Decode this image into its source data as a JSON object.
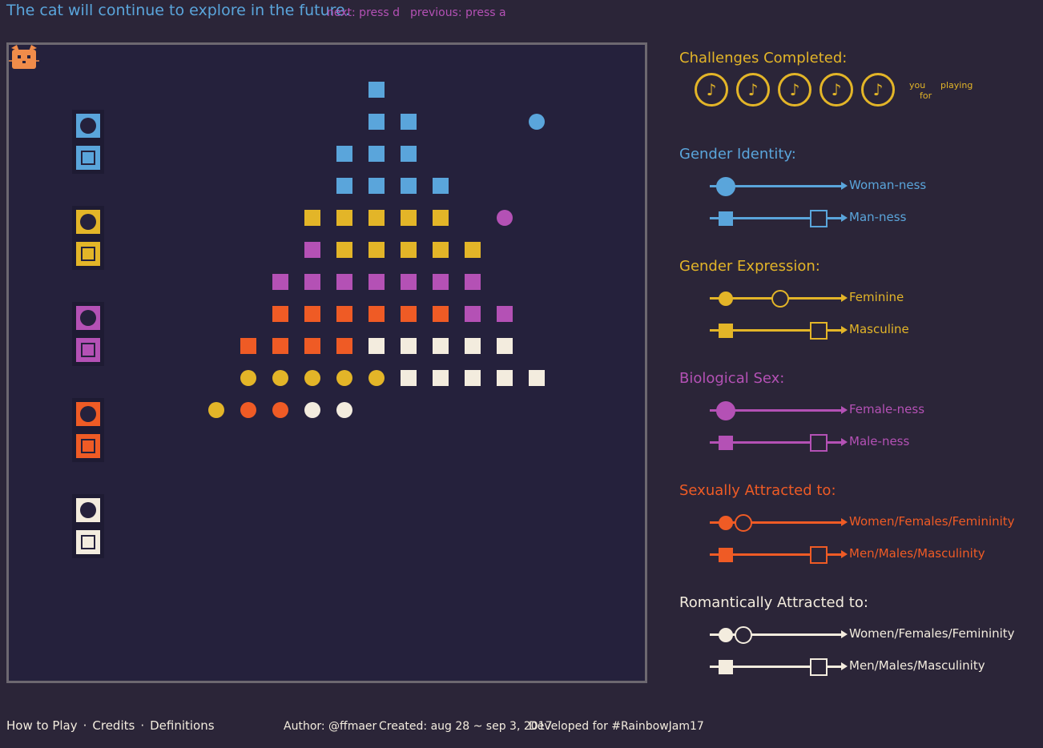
{
  "header": {
    "message": "The cat will continue to explore in the future.",
    "next_hint": "next: press d",
    "previous_hint": "previous: press a"
  },
  "colors": {
    "background": "#2b2538",
    "board": "#25213c",
    "blue": "#5aa5db",
    "yellow": "#e3b528",
    "purple": "#b451b5",
    "orange": "#ef5b25",
    "cream": "#f3ecde",
    "cat": "#f08c4a"
  },
  "board": {
    "cat_icon": "cat-icon",
    "key_tiles": [
      {
        "color": "blue",
        "mark": "circle"
      },
      {
        "color": "blue",
        "mark": "square"
      },
      {
        "color": "yellow",
        "mark": "circle"
      },
      {
        "color": "yellow",
        "mark": "square"
      },
      {
        "color": "purple",
        "mark": "circle"
      },
      {
        "color": "purple",
        "mark": "square"
      },
      {
        "color": "orange",
        "mark": "circle"
      },
      {
        "color": "orange",
        "mark": "square"
      },
      {
        "color": "cream",
        "mark": "circle"
      },
      {
        "color": "cream",
        "mark": "square"
      }
    ],
    "points": [
      {
        "col": 11,
        "row": 1,
        "shape": "square",
        "color": "blue"
      },
      {
        "col": 11,
        "row": 2,
        "shape": "square",
        "color": "blue"
      },
      {
        "col": 12,
        "row": 2,
        "shape": "square",
        "color": "blue"
      },
      {
        "col": 16,
        "row": 2,
        "shape": "circle",
        "color": "blue"
      },
      {
        "col": 10,
        "row": 3,
        "shape": "square",
        "color": "blue"
      },
      {
        "col": 11,
        "row": 3,
        "shape": "square",
        "color": "blue"
      },
      {
        "col": 12,
        "row": 3,
        "shape": "square",
        "color": "blue"
      },
      {
        "col": 10,
        "row": 4,
        "shape": "square",
        "color": "blue"
      },
      {
        "col": 11,
        "row": 4,
        "shape": "square",
        "color": "blue"
      },
      {
        "col": 12,
        "row": 4,
        "shape": "square",
        "color": "blue"
      },
      {
        "col": 13,
        "row": 4,
        "shape": "square",
        "color": "blue"
      },
      {
        "col": 9,
        "row": 5,
        "shape": "square",
        "color": "yellow"
      },
      {
        "col": 10,
        "row": 5,
        "shape": "square",
        "color": "yellow"
      },
      {
        "col": 11,
        "row": 5,
        "shape": "square",
        "color": "yellow"
      },
      {
        "col": 12,
        "row": 5,
        "shape": "square",
        "color": "yellow"
      },
      {
        "col": 13,
        "row": 5,
        "shape": "square",
        "color": "yellow"
      },
      {
        "col": 15,
        "row": 5,
        "shape": "circle",
        "color": "purple"
      },
      {
        "col": 9,
        "row": 6,
        "shape": "square",
        "color": "purple"
      },
      {
        "col": 10,
        "row": 6,
        "shape": "square",
        "color": "yellow"
      },
      {
        "col": 11,
        "row": 6,
        "shape": "square",
        "color": "yellow"
      },
      {
        "col": 12,
        "row": 6,
        "shape": "square",
        "color": "yellow"
      },
      {
        "col": 13,
        "row": 6,
        "shape": "square",
        "color": "yellow"
      },
      {
        "col": 14,
        "row": 6,
        "shape": "square",
        "color": "yellow"
      },
      {
        "col": 8,
        "row": 7,
        "shape": "square",
        "color": "purple"
      },
      {
        "col": 9,
        "row": 7,
        "shape": "square",
        "color": "purple"
      },
      {
        "col": 10,
        "row": 7,
        "shape": "square",
        "color": "purple"
      },
      {
        "col": 11,
        "row": 7,
        "shape": "square",
        "color": "purple"
      },
      {
        "col": 12,
        "row": 7,
        "shape": "square",
        "color": "purple"
      },
      {
        "col": 13,
        "row": 7,
        "shape": "square",
        "color": "purple"
      },
      {
        "col": 14,
        "row": 7,
        "shape": "square",
        "color": "purple"
      },
      {
        "col": 8,
        "row": 8,
        "shape": "square",
        "color": "orange"
      },
      {
        "col": 9,
        "row": 8,
        "shape": "square",
        "color": "orange"
      },
      {
        "col": 10,
        "row": 8,
        "shape": "square",
        "color": "orange"
      },
      {
        "col": 11,
        "row": 8,
        "shape": "square",
        "color": "orange"
      },
      {
        "col": 12,
        "row": 8,
        "shape": "square",
        "color": "orange"
      },
      {
        "col": 13,
        "row": 8,
        "shape": "square",
        "color": "orange"
      },
      {
        "col": 14,
        "row": 8,
        "shape": "square",
        "color": "purple"
      },
      {
        "col": 15,
        "row": 8,
        "shape": "square",
        "color": "purple"
      },
      {
        "col": 7,
        "row": 9,
        "shape": "square",
        "color": "orange"
      },
      {
        "col": 8,
        "row": 9,
        "shape": "square",
        "color": "orange"
      },
      {
        "col": 9,
        "row": 9,
        "shape": "square",
        "color": "orange"
      },
      {
        "col": 10,
        "row": 9,
        "shape": "square",
        "color": "orange"
      },
      {
        "col": 11,
        "row": 9,
        "shape": "square",
        "color": "cream"
      },
      {
        "col": 12,
        "row": 9,
        "shape": "square",
        "color": "cream"
      },
      {
        "col": 13,
        "row": 9,
        "shape": "square",
        "color": "cream"
      },
      {
        "col": 14,
        "row": 9,
        "shape": "square",
        "color": "cream"
      },
      {
        "col": 15,
        "row": 9,
        "shape": "square",
        "color": "cream"
      },
      {
        "col": 7,
        "row": 10,
        "shape": "circle",
        "color": "yellow"
      },
      {
        "col": 8,
        "row": 10,
        "shape": "circle",
        "color": "yellow"
      },
      {
        "col": 9,
        "row": 10,
        "shape": "circle",
        "color": "yellow"
      },
      {
        "col": 10,
        "row": 10,
        "shape": "circle",
        "color": "yellow"
      },
      {
        "col": 11,
        "row": 10,
        "shape": "circle",
        "color": "yellow"
      },
      {
        "col": 12,
        "row": 10,
        "shape": "square",
        "color": "cream"
      },
      {
        "col": 13,
        "row": 10,
        "shape": "square",
        "color": "cream"
      },
      {
        "col": 14,
        "row": 10,
        "shape": "square",
        "color": "cream"
      },
      {
        "col": 15,
        "row": 10,
        "shape": "square",
        "color": "cream"
      },
      {
        "col": 16,
        "row": 10,
        "shape": "square",
        "color": "cream"
      },
      {
        "col": 6,
        "row": 11,
        "shape": "circle",
        "color": "yellow"
      },
      {
        "col": 7,
        "row": 11,
        "shape": "circle",
        "color": "orange"
      },
      {
        "col": 8,
        "row": 11,
        "shape": "circle",
        "color": "orange"
      },
      {
        "col": 9,
        "row": 11,
        "shape": "circle",
        "color": "cream"
      },
      {
        "col": 10,
        "row": 11,
        "shape": "circle",
        "color": "cream"
      }
    ]
  },
  "challenges": {
    "title": "Challenges Completed:",
    "badge_icon": "♪",
    "badge_count": 5,
    "thanks_you": "you",
    "thanks_for": "for",
    "thanks_playing": "playing"
  },
  "dimensions": [
    {
      "title": "Gender Identity:",
      "color": "blue",
      "sliders": [
        {
          "label": "Woman-ness",
          "filled": {
            "shape": "circle",
            "value": 0.12
          },
          "hollow": null
        },
        {
          "label": "Man-ness",
          "filled": {
            "shape": "square",
            "value": 0.12
          },
          "hollow": {
            "shape": "square",
            "value": 0.82
          }
        }
      ]
    },
    {
      "title": "Gender Expression:",
      "color": "yellow",
      "sliders": [
        {
          "label": "Feminine",
          "filled": {
            "shape": "circle",
            "value": 0.12
          },
          "hollow": {
            "shape": "circle",
            "value": 0.53
          }
        },
        {
          "label": "Masculine",
          "filled": {
            "shape": "square",
            "value": 0.12
          },
          "hollow": {
            "shape": "square",
            "value": 0.82
          }
        }
      ]
    },
    {
      "title": "Biological Sex:",
      "color": "purple",
      "sliders": [
        {
          "label": "Female-ness",
          "filled": {
            "shape": "circle",
            "value": 0.12
          },
          "hollow": null
        },
        {
          "label": "Male-ness",
          "filled": {
            "shape": "square",
            "value": 0.12
          },
          "hollow": {
            "shape": "square",
            "value": 0.82
          }
        }
      ]
    },
    {
      "title": "Sexually Attracted to:",
      "color": "orange",
      "sliders": [
        {
          "label": "Women/Females/Femininity",
          "filled": {
            "shape": "circle",
            "value": 0.12
          },
          "hollow": {
            "shape": "circle",
            "value": 0.25
          }
        },
        {
          "label": "Men/Males/Masculinity",
          "filled": {
            "shape": "square",
            "value": 0.12
          },
          "hollow": {
            "shape": "square",
            "value": 0.82
          }
        }
      ]
    },
    {
      "title": "Romantically Attracted to:",
      "color": "cream",
      "sliders": [
        {
          "label": "Women/Females/Femininity",
          "filled": {
            "shape": "circle",
            "value": 0.12
          },
          "hollow": {
            "shape": "circle",
            "value": 0.25
          }
        },
        {
          "label": "Men/Males/Masculinity",
          "filled": {
            "shape": "square",
            "value": 0.12
          },
          "hollow": {
            "shape": "square",
            "value": 0.82
          }
        }
      ]
    }
  ],
  "footer": {
    "how_to_play": "How to Play",
    "credits": "Credits",
    "definitions": "Definitions",
    "separator": "·",
    "author": "Author: @ffmaer",
    "created": "Created: aug 28 ~ sep 3, 2017",
    "developed": "Developed for #RainbowJam17"
  }
}
